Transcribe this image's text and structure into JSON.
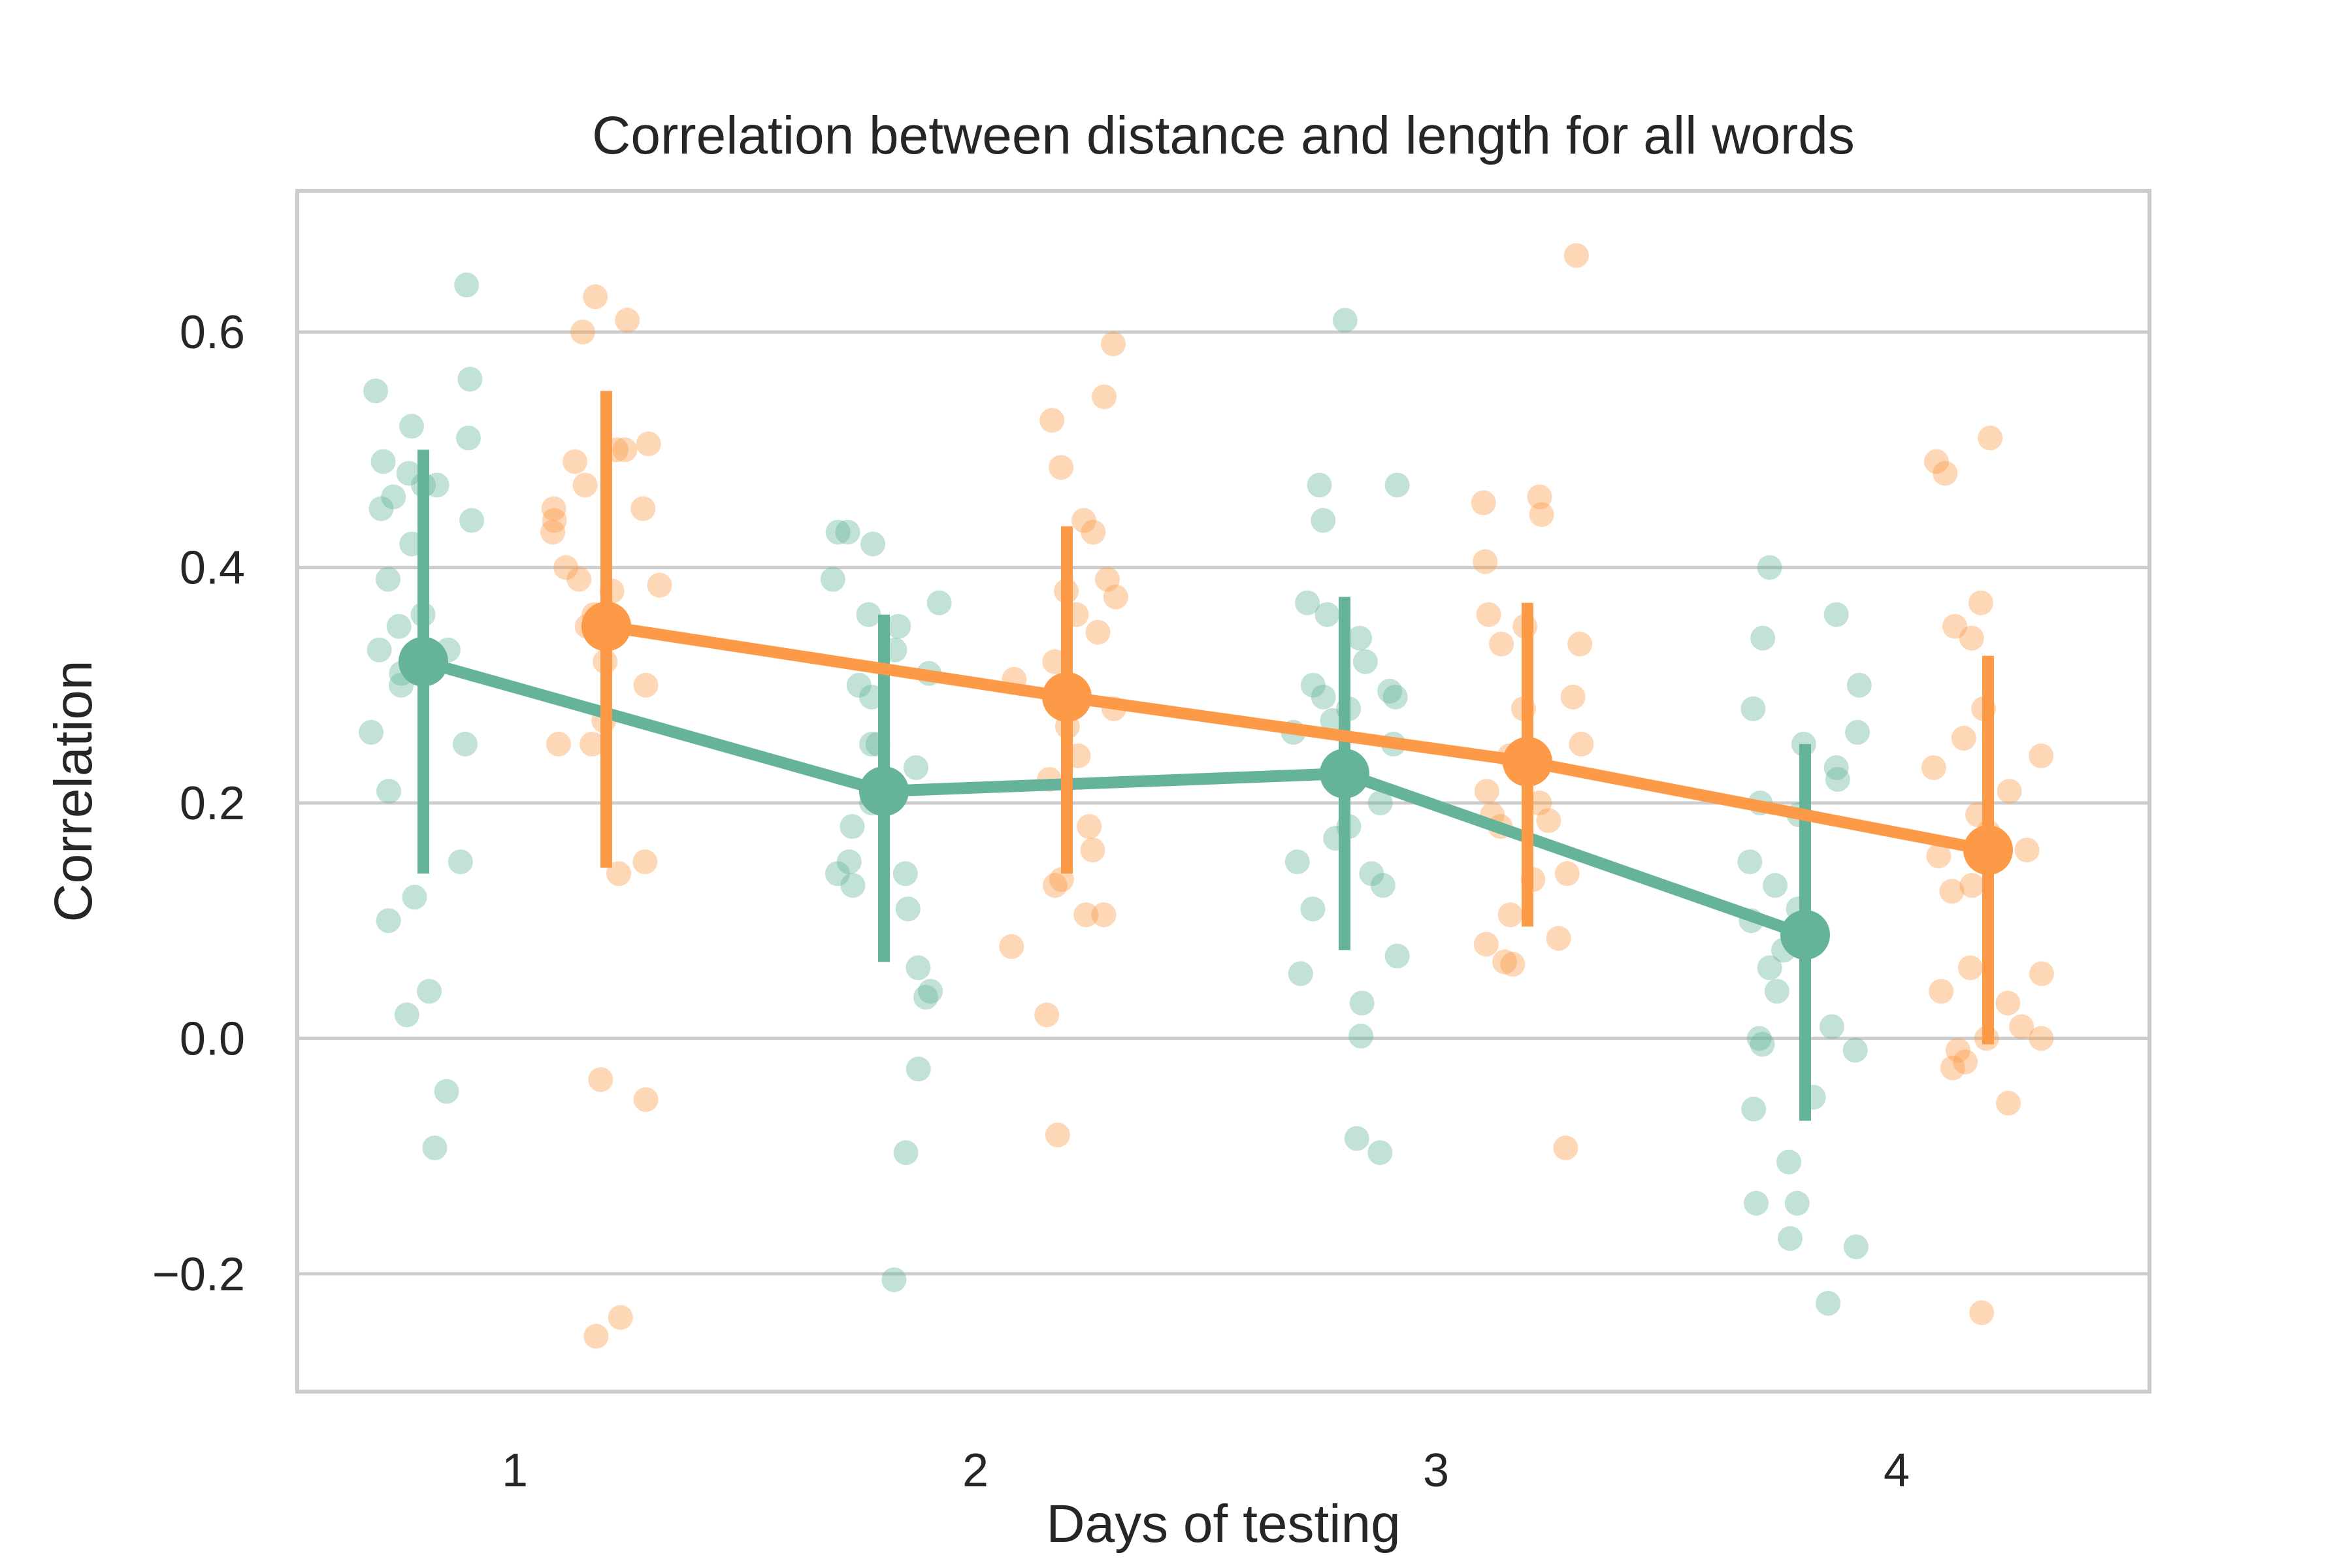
{
  "chart_data": {
    "type": "scatter",
    "subtype": "point-plot with jittered strip points and error bars",
    "title": "Correlation between distance and length for all words",
    "xlabel": "Days of testing",
    "ylabel": "Correlation",
    "categories": [
      "1",
      "2",
      "3",
      "4"
    ],
    "ylim": [
      -0.3,
      0.72
    ],
    "yticks": [
      -0.2,
      0.0,
      0.2,
      0.4,
      0.6
    ],
    "ytick_labels": [
      "−0.2",
      "0.0",
      "0.2",
      "0.4",
      "0.6"
    ],
    "grid": "horizontal",
    "legend": "none",
    "series": [
      {
        "color": "#66b39c",
        "means": [
          0.32,
          0.21,
          0.225,
          0.088
        ],
        "ci_low": [
          0.14,
          0.065,
          0.075,
          -0.07
        ],
        "ci_high": [
          0.5,
          0.36,
          0.375,
          0.25
        ],
        "points": [
          [
            0.64,
            0.56,
            0.55,
            0.52,
            0.51,
            0.49,
            0.48,
            0.47,
            0.47,
            0.46,
            0.45,
            0.44,
            0.42,
            0.39,
            0.36,
            0.35,
            0.33,
            0.33,
            0.31,
            0.3,
            0.26,
            0.25,
            0.21,
            0.15,
            0.12,
            0.1,
            0.04,
            0.02,
            -0.045,
            -0.093
          ],
          [
            0.43,
            0.43,
            0.42,
            0.39,
            0.37,
            0.36,
            0.35,
            0.33,
            0.31,
            0.3,
            0.29,
            0.25,
            0.25,
            0.23,
            0.21,
            0.2,
            0.18,
            0.15,
            0.14,
            0.14,
            0.13,
            0.11,
            0.06,
            0.04,
            0.035,
            -0.026,
            -0.097,
            -0.205
          ],
          [
            0.61,
            0.47,
            0.47,
            0.44,
            0.37,
            0.36,
            0.34,
            0.32,
            0.3,
            0.295,
            0.29,
            0.29,
            0.28,
            0.27,
            0.26,
            0.25,
            0.22,
            0.2,
            0.18,
            0.17,
            0.15,
            0.14,
            0.13,
            0.11,
            0.07,
            0.055,
            0.03,
            0.002,
            -0.085,
            -0.097
          ],
          [
            0.4,
            0.36,
            0.34,
            0.3,
            0.28,
            0.26,
            0.25,
            0.23,
            0.22,
            0.2,
            0.19,
            0.15,
            0.13,
            0.11,
            0.1,
            0.075,
            0.06,
            0.04,
            0.01,
            0.0,
            -0.005,
            -0.01,
            -0.05,
            -0.06,
            -0.105,
            -0.14,
            -0.14,
            -0.17,
            -0.177,
            -0.225
          ]
        ]
      },
      {
        "color": "#fd9a48",
        "means": [
          0.35,
          0.29,
          0.235,
          0.16
        ],
        "ci_low": [
          0.145,
          0.14,
          0.095,
          -0.005
        ],
        "ci_high": [
          0.55,
          0.435,
          0.37,
          0.325
        ],
        "points": [
          [
            0.63,
            0.61,
            0.6,
            0.505,
            0.5,
            0.5,
            0.49,
            0.47,
            0.45,
            0.45,
            0.44,
            0.43,
            0.4,
            0.39,
            0.385,
            0.38,
            0.36,
            0.35,
            0.32,
            0.3,
            0.27,
            0.25,
            0.25,
            0.15,
            0.14,
            -0.035,
            -0.052,
            -0.237,
            -0.253
          ],
          [
            0.59,
            0.545,
            0.525,
            0.485,
            0.44,
            0.43,
            0.39,
            0.38,
            0.375,
            0.36,
            0.345,
            0.32,
            0.305,
            0.28,
            0.265,
            0.24,
            0.22,
            0.18,
            0.16,
            0.135,
            0.13,
            0.105,
            0.105,
            0.078,
            0.02,
            -0.082
          ],
          [
            0.665,
            0.46,
            0.455,
            0.445,
            0.405,
            0.36,
            0.35,
            0.335,
            0.335,
            0.29,
            0.28,
            0.25,
            0.24,
            0.21,
            0.2,
            0.19,
            0.185,
            0.18,
            0.14,
            0.135,
            0.105,
            0.085,
            0.08,
            0.065,
            0.063,
            -0.093
          ],
          [
            0.51,
            0.49,
            0.48,
            0.37,
            0.35,
            0.34,
            0.28,
            0.255,
            0.24,
            0.23,
            0.21,
            0.19,
            0.175,
            0.16,
            0.155,
            0.13,
            0.125,
            0.06,
            0.055,
            0.04,
            0.03,
            0.01,
            0.0,
            0.0,
            -0.01,
            -0.02,
            -0.025,
            -0.055,
            -0.233
          ]
        ]
      }
    ]
  }
}
